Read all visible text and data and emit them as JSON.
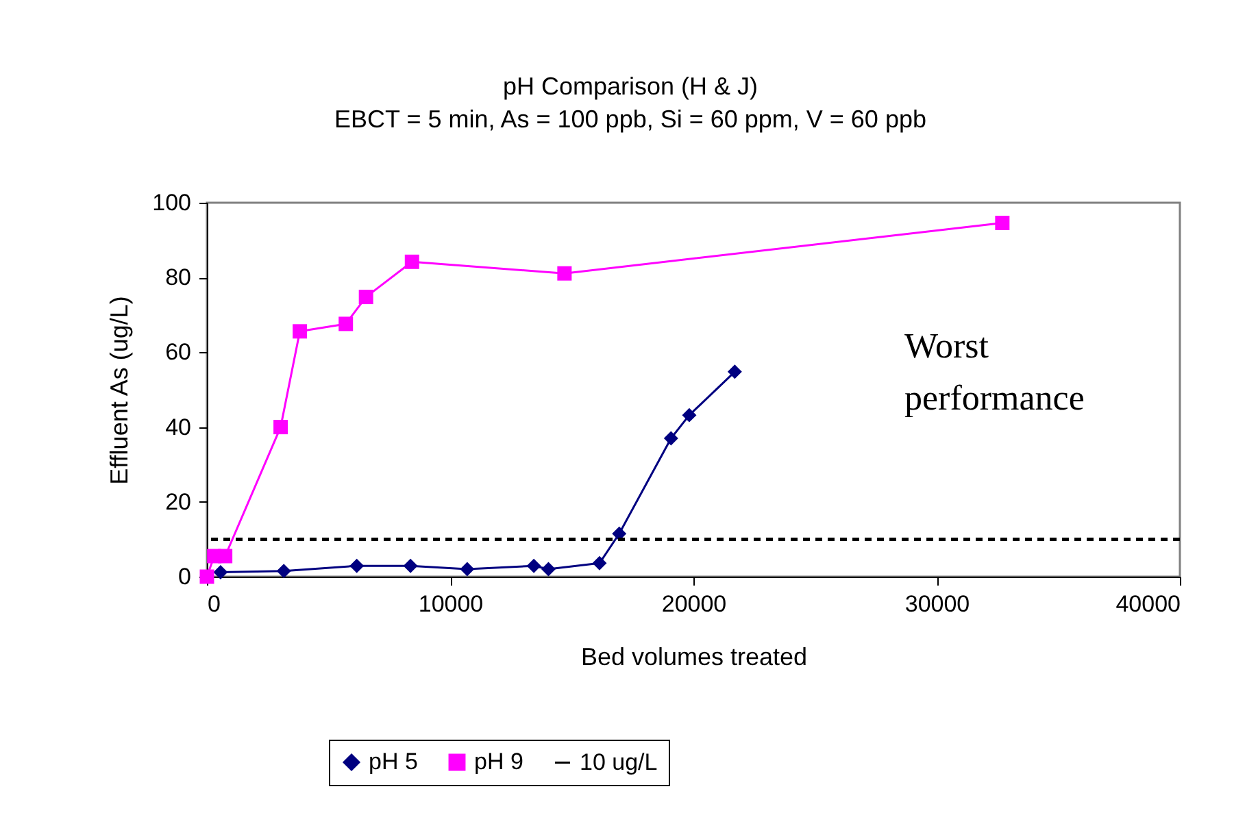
{
  "chart_data": {
    "type": "line",
    "title": "pH Comparison (H & J)",
    "subtitle": "EBCT = 5 min, As = 100 ppb, Si = 60 ppm, V = 60 ppb",
    "xlabel": "Bed volumes treated",
    "ylabel": "Effluent As (ug/L)",
    "annotations": [
      "Worst performance"
    ],
    "series": [
      {
        "name": "pH 5",
        "color": "#000080",
        "marker": "diamond",
        "x": [
          560,
          3160,
          6160,
          8370,
          10700,
          13440,
          14040,
          16140,
          16950,
          19080,
          19830,
          21700
        ],
        "values": [
          1.2,
          1.5,
          2.9,
          2.9,
          2.0,
          2.9,
          2.0,
          3.6,
          11.5,
          37,
          43.2,
          54.8
        ]
      },
      {
        "name": "pH 9",
        "color": "#ff00ff",
        "marker": "square",
        "x": [
          0,
          300,
          750,
          3030,
          3820,
          5710,
          6540,
          8430,
          14700,
          32700
        ],
        "values": [
          0,
          5.5,
          5.5,
          40,
          65.6,
          67.6,
          74.8,
          84.2,
          81.1,
          94.6
        ]
      }
    ],
    "ref_lines": [
      {
        "axis": "y",
        "value": 10,
        "label": "10 ug/L",
        "color": "#000000",
        "line_style": "dashed"
      }
    ],
    "xlim": [
      0,
      40000
    ],
    "xticks": [
      0,
      10000,
      20000,
      30000,
      40000
    ],
    "ylim": [
      0,
      100
    ],
    "yticks": [
      0,
      20,
      40,
      60,
      80,
      100
    ],
    "grid": false,
    "legend": "bottom"
  }
}
